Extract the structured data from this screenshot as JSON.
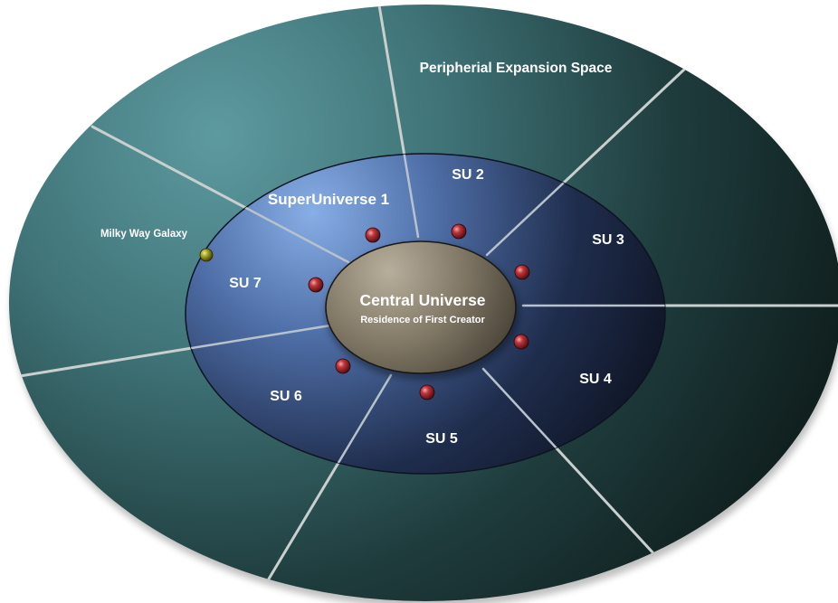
{
  "labels": {
    "outer_region": "Peripherial Expansion Space",
    "su1": "SuperUniverse 1",
    "su2": "SU 2",
    "su3": "SU 3",
    "su4": "SU 4",
    "su5": "SU 5",
    "su6": "SU 6",
    "su7": "SU 7",
    "milky_way": "Milky Way Galaxy",
    "central_title": "Central Universe",
    "central_subtitle": "Residence of First Creator"
  },
  "colors": {
    "outer_light": "#5d9aa0",
    "outer_dark": "#10201f",
    "mid_light": "#88aee6",
    "mid_dark": "#0b0f1c",
    "center_light": "#b7ae9c",
    "center_dark": "#2c2820",
    "sphere": "#c0343a",
    "milky_way_marker": "#a4a020",
    "divider": "#c9cfcf",
    "text": "#ffffff"
  }
}
